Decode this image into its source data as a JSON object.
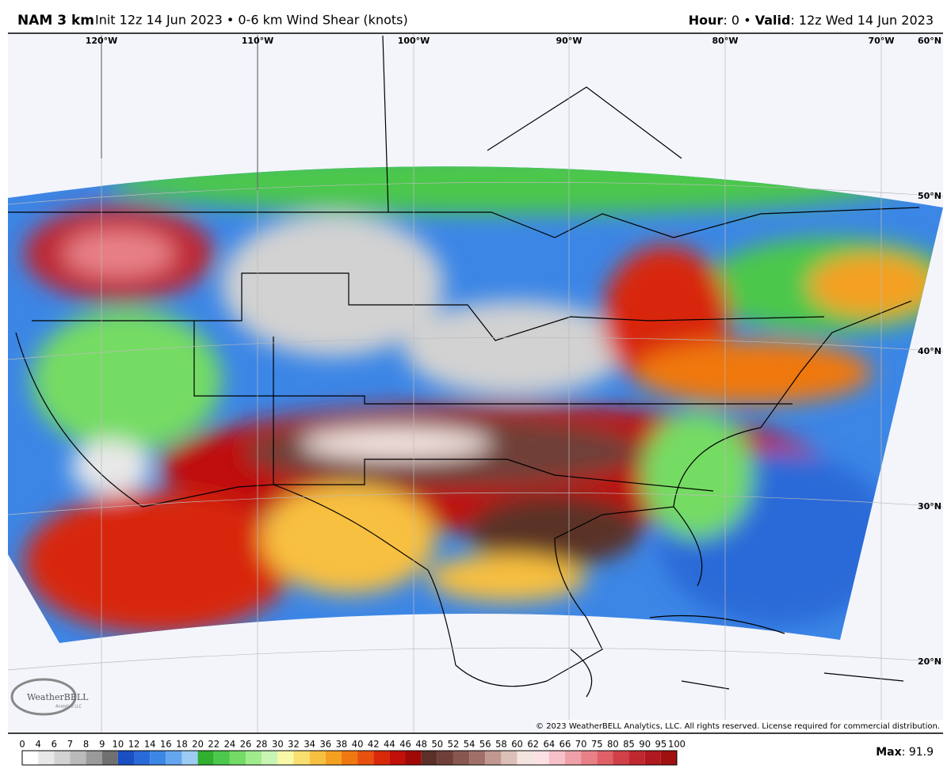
{
  "header": {
    "model": "NAM 3 km",
    "subtitle": "Init 12z 14 Jun 2023 • 0-6 km Wind Shear (knots)",
    "hour_label": "Hour",
    "hour_value": ": 0 • ",
    "valid_label": "Valid",
    "valid_value": ": 12z Wed 14 Jun 2023"
  },
  "map": {
    "lon_labels": [
      "120°W",
      "110°W",
      "100°W",
      "90°W",
      "80°W",
      "70°W"
    ],
    "lat_labels": [
      "60°N",
      "50°N",
      "40°N",
      "30°N",
      "20°N"
    ],
    "copyright": "© 2023 WeatherBELL Analytics, LLC. All rights reserved. License required for commercial distribution.",
    "logo": "WeatherBELL",
    "logo_sub": "Analytics LLC"
  },
  "legend": {
    "ticks": [
      "0",
      "4",
      "6",
      "7",
      "8",
      "9",
      "10",
      "12",
      "14",
      "16",
      "18",
      "20",
      "22",
      "24",
      "26",
      "28",
      "30",
      "32",
      "34",
      "36",
      "38",
      "40",
      "42",
      "44",
      "46",
      "48",
      "50",
      "52",
      "54",
      "56",
      "58",
      "60",
      "62",
      "64",
      "66",
      "70",
      "75",
      "80",
      "85",
      "90",
      "95",
      "100"
    ],
    "colors": [
      "#ffffff",
      "#e8e8e8",
      "#d2d2d2",
      "#bababa",
      "#9a9a9a",
      "#707070",
      "#1a4fc4",
      "#2a6ad8",
      "#3c86e6",
      "#64a6ee",
      "#9ccbf4",
      "#2fb02f",
      "#4cc84c",
      "#74dc64",
      "#a0ec8c",
      "#c8f4b4",
      "#f8f8a8",
      "#f8e070",
      "#f8c040",
      "#f4a020",
      "#f07810",
      "#e85010",
      "#d82808",
      "#c01008",
      "#a00808",
      "#5a3028",
      "#704038",
      "#885850",
      "#a07068",
      "#c09890",
      "#dcc0b8",
      "#f4e4e0",
      "#fce0e4",
      "#f8c0c8",
      "#f0a0a8",
      "#e88088",
      "#e06068",
      "#d04048",
      "#c02830",
      "#b01820",
      "#a01010"
    ],
    "max_label": "Max",
    "max_value": ": 91.9"
  }
}
